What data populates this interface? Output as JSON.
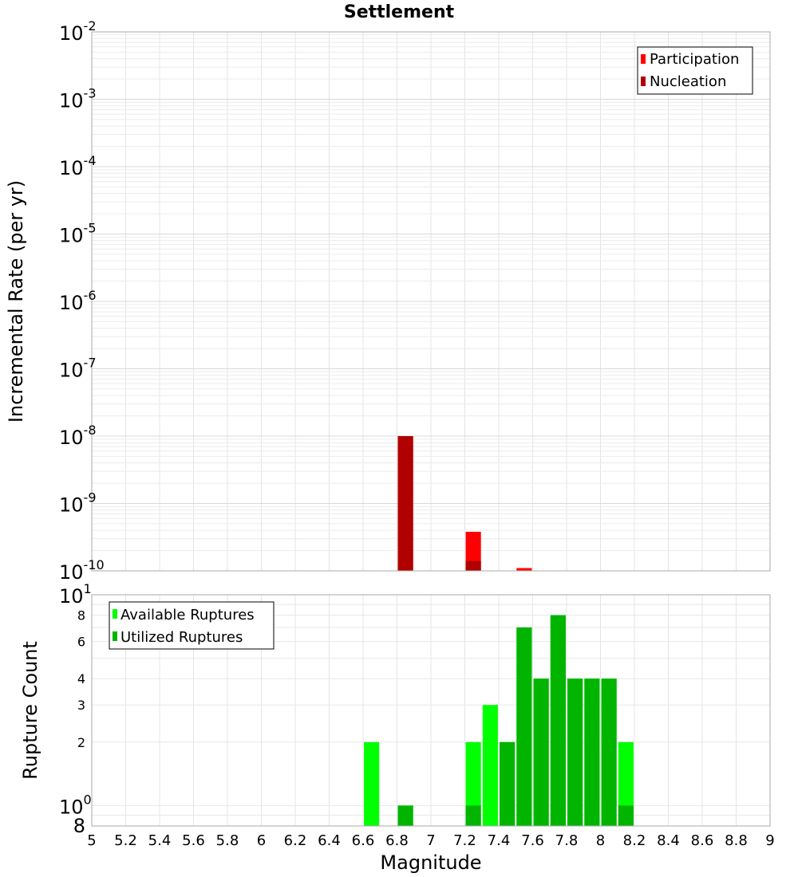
{
  "chart_data": [
    {
      "panel": "top",
      "type": "bar",
      "title": "Settlement",
      "ylabel": "Incremental Rate (per yr)",
      "yscale": "log",
      "ylim": [
        1e-10,
        0.01
      ],
      "xlim": [
        5,
        9
      ],
      "y_tick_labels": [
        {
          "base": "10",
          "exp": "-2"
        },
        {
          "base": "10",
          "exp": "-3"
        },
        {
          "base": "10",
          "exp": "-4"
        },
        {
          "base": "10",
          "exp": "-5"
        },
        {
          "base": "10",
          "exp": "-6"
        },
        {
          "base": "10",
          "exp": "-7"
        },
        {
          "base": "10",
          "exp": "-8"
        },
        {
          "base": "10",
          "exp": "-9"
        },
        {
          "base": "10",
          "exp": "-10"
        }
      ],
      "legend": {
        "position": "top-right",
        "entries": [
          "Participation",
          "Nucleation"
        ]
      },
      "series": [
        {
          "name": "Participation",
          "color": "#ff0000",
          "points": [
            {
              "x": 6.85,
              "y": 1e-08
            },
            {
              "x": 7.25,
              "y": 3.8e-10
            },
            {
              "x": 7.55,
              "y": 1.1e-10
            }
          ]
        },
        {
          "name": "Nucleation",
          "color": "#b00000",
          "points": [
            {
              "x": 6.85,
              "y": 1e-08
            },
            {
              "x": 7.25,
              "y": 1.4e-10
            }
          ]
        }
      ],
      "grid": true
    },
    {
      "panel": "bottom",
      "type": "bar",
      "xlabel": "Magnitude",
      "ylabel": "Rupture Count",
      "yscale": "log",
      "ylim": [
        0.8,
        10
      ],
      "xlim": [
        5,
        9
      ],
      "x_ticks": [
        "5",
        "5.2",
        "5.4",
        "5.6",
        "5.8",
        "6",
        "6.2",
        "6.4",
        "6.6",
        "6.8",
        "7",
        "7.2",
        "7.4",
        "7.6",
        "7.8",
        "8",
        "8.2",
        "8.4",
        "8.6",
        "8.8",
        "9"
      ],
      "y_tick_labels": [
        {
          "label": "8",
          "kind": "minor",
          "value": 8
        },
        {
          "label": "6",
          "kind": "minor",
          "value": 6
        },
        {
          "label": "4",
          "kind": "minor",
          "value": 4
        },
        {
          "label": "3",
          "kind": "minor",
          "value": 3
        },
        {
          "label": "2",
          "kind": "minor",
          "value": 2
        }
      ],
      "y_major_labels": [
        {
          "base": "10",
          "exp": "1",
          "value": 10
        },
        {
          "base": "10",
          "exp": "0",
          "value": 1
        }
      ],
      "y_bottom_label": {
        "label": "8",
        "value": 0.8
      },
      "legend": {
        "position": "top-left",
        "entries": [
          "Available Ruptures",
          "Utilized Ruptures"
        ]
      },
      "series": [
        {
          "name": "Available Ruptures",
          "color": "#00ff00",
          "points": [
            {
              "x": 6.65,
              "y": 2
            },
            {
              "x": 6.85,
              "y": 1
            },
            {
              "x": 7.25,
              "y": 2
            },
            {
              "x": 7.35,
              "y": 3
            },
            {
              "x": 7.45,
              "y": 2
            },
            {
              "x": 7.55,
              "y": 7
            },
            {
              "x": 7.65,
              "y": 4
            },
            {
              "x": 7.75,
              "y": 8
            },
            {
              "x": 7.85,
              "y": 4
            },
            {
              "x": 7.95,
              "y": 4
            },
            {
              "x": 8.05,
              "y": 4
            },
            {
              "x": 8.15,
              "y": 2
            }
          ]
        },
        {
          "name": "Utilized Ruptures",
          "color": "#00b400",
          "points": [
            {
              "x": 6.85,
              "y": 1
            },
            {
              "x": 7.25,
              "y": 1
            },
            {
              "x": 7.45,
              "y": 2
            },
            {
              "x": 7.55,
              "y": 7
            },
            {
              "x": 7.65,
              "y": 4
            },
            {
              "x": 7.75,
              "y": 8
            },
            {
              "x": 7.85,
              "y": 4
            },
            {
              "x": 7.95,
              "y": 4
            },
            {
              "x": 8.05,
              "y": 4
            },
            {
              "x": 8.15,
              "y": 1
            }
          ]
        }
      ],
      "grid": true
    }
  ]
}
